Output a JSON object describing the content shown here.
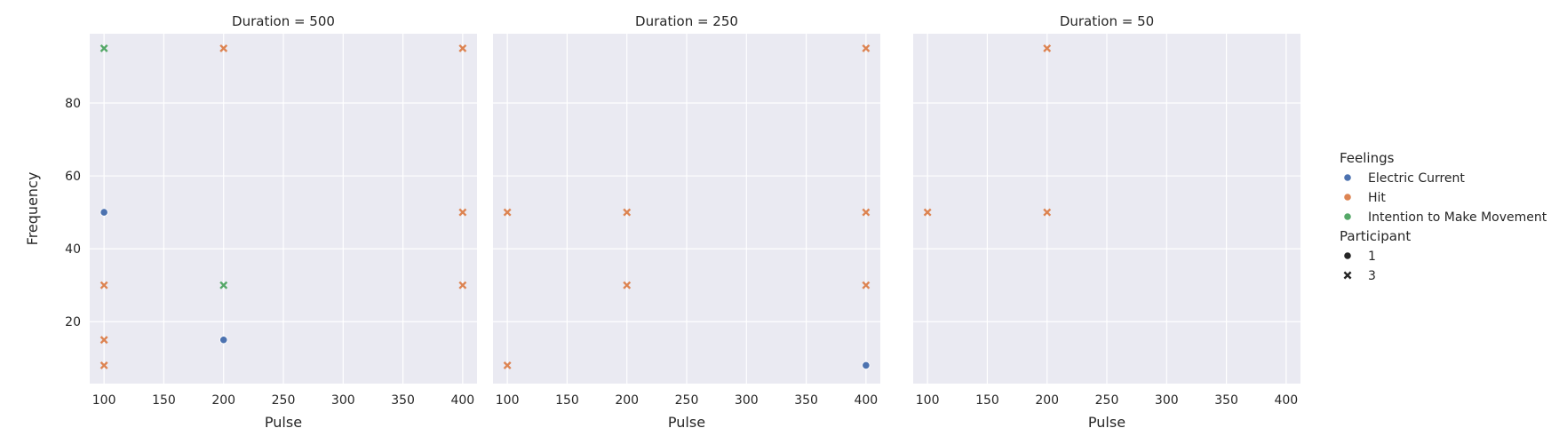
{
  "chart_data": {
    "type": "scatter",
    "x_label": "Pulse",
    "y_label": "Frequency",
    "xlim": [
      88,
      412
    ],
    "ylim": [
      3,
      99
    ],
    "x_ticks": [
      100,
      150,
      200,
      250,
      300,
      350,
      400
    ],
    "y_ticks": [
      20,
      40,
      60,
      80
    ],
    "grid": true,
    "legend_placement": "right",
    "hue": {
      "title": "Feelings",
      "entries": [
        {
          "label": "Electric Current",
          "color": "#4c72b0"
        },
        {
          "label": "Hit",
          "color": "#dd8452"
        },
        {
          "label": "Intention to Make Movement",
          "color": "#55a868"
        }
      ]
    },
    "style": {
      "title": "Participant",
      "entries": [
        {
          "label": "1",
          "marker": "circle"
        },
        {
          "label": "3",
          "marker": "x"
        }
      ]
    },
    "facets": [
      {
        "title": "Duration = 500",
        "points": [
          {
            "x": 100,
            "y": 95,
            "feeling": "Intention to Make Movement",
            "participant": "3"
          },
          {
            "x": 200,
            "y": 95,
            "feeling": "Hit",
            "participant": "3"
          },
          {
            "x": 400,
            "y": 95,
            "feeling": "Hit",
            "participant": "3"
          },
          {
            "x": 100,
            "y": 50,
            "feeling": "Electric Current",
            "participant": "1"
          },
          {
            "x": 400,
            "y": 50,
            "feeling": "Hit",
            "participant": "3"
          },
          {
            "x": 100,
            "y": 30,
            "feeling": "Hit",
            "participant": "3"
          },
          {
            "x": 200,
            "y": 30,
            "feeling": "Intention to Make Movement",
            "participant": "3"
          },
          {
            "x": 400,
            "y": 30,
            "feeling": "Hit",
            "participant": "3"
          },
          {
            "x": 100,
            "y": 15,
            "feeling": "Hit",
            "participant": "3"
          },
          {
            "x": 200,
            "y": 15,
            "feeling": "Electric Current",
            "participant": "1"
          },
          {
            "x": 100,
            "y": 8,
            "feeling": "Hit",
            "participant": "3"
          }
        ]
      },
      {
        "title": "Duration = 250",
        "points": [
          {
            "x": 400,
            "y": 95,
            "feeling": "Hit",
            "participant": "3"
          },
          {
            "x": 100,
            "y": 50,
            "feeling": "Hit",
            "participant": "3"
          },
          {
            "x": 200,
            "y": 50,
            "feeling": "Hit",
            "participant": "3"
          },
          {
            "x": 400,
            "y": 50,
            "feeling": "Hit",
            "participant": "3"
          },
          {
            "x": 200,
            "y": 30,
            "feeling": "Hit",
            "participant": "3"
          },
          {
            "x": 400,
            "y": 30,
            "feeling": "Hit",
            "participant": "3"
          },
          {
            "x": 100,
            "y": 8,
            "feeling": "Hit",
            "participant": "3"
          },
          {
            "x": 400,
            "y": 8,
            "feeling": "Electric Current",
            "participant": "1"
          }
        ]
      },
      {
        "title": "Duration = 50",
        "points": [
          {
            "x": 200,
            "y": 95,
            "feeling": "Hit",
            "participant": "3"
          },
          {
            "x": 100,
            "y": 50,
            "feeling": "Hit",
            "participant": "3"
          },
          {
            "x": 200,
            "y": 50,
            "feeling": "Hit",
            "participant": "3"
          }
        ]
      }
    ]
  }
}
